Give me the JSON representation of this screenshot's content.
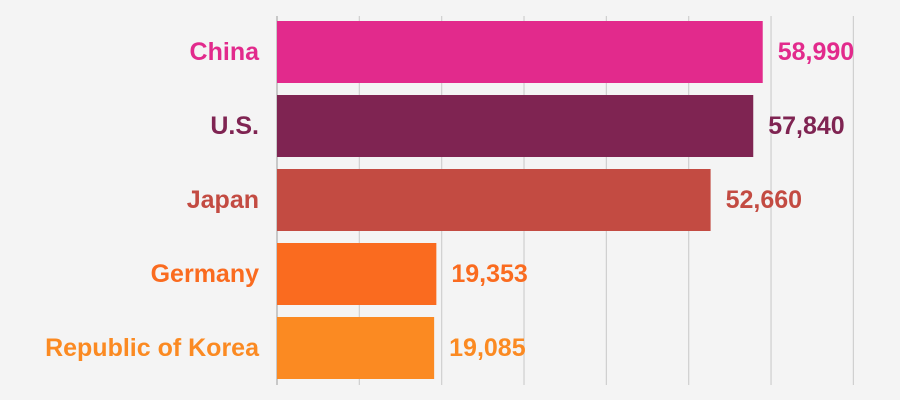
{
  "chart_data": {
    "type": "bar",
    "orientation": "horizontal",
    "categories": [
      "China",
      "U.S.",
      "Japan",
      "Germany",
      "Republic of Korea"
    ],
    "values": [
      58990,
      57840,
      52660,
      19353,
      19085
    ],
    "value_labels": [
      "58,990",
      "57,840",
      "52,660",
      "19,353",
      "19,085"
    ],
    "colors": [
      "#e22a8c",
      "#7f2452",
      "#c34b42",
      "#fa6b1f",
      "#fb8a22"
    ],
    "title": "",
    "xlabel": "",
    "ylabel": "",
    "xlim": [
      0,
      70000
    ],
    "grid": true,
    "legend": "none"
  }
}
